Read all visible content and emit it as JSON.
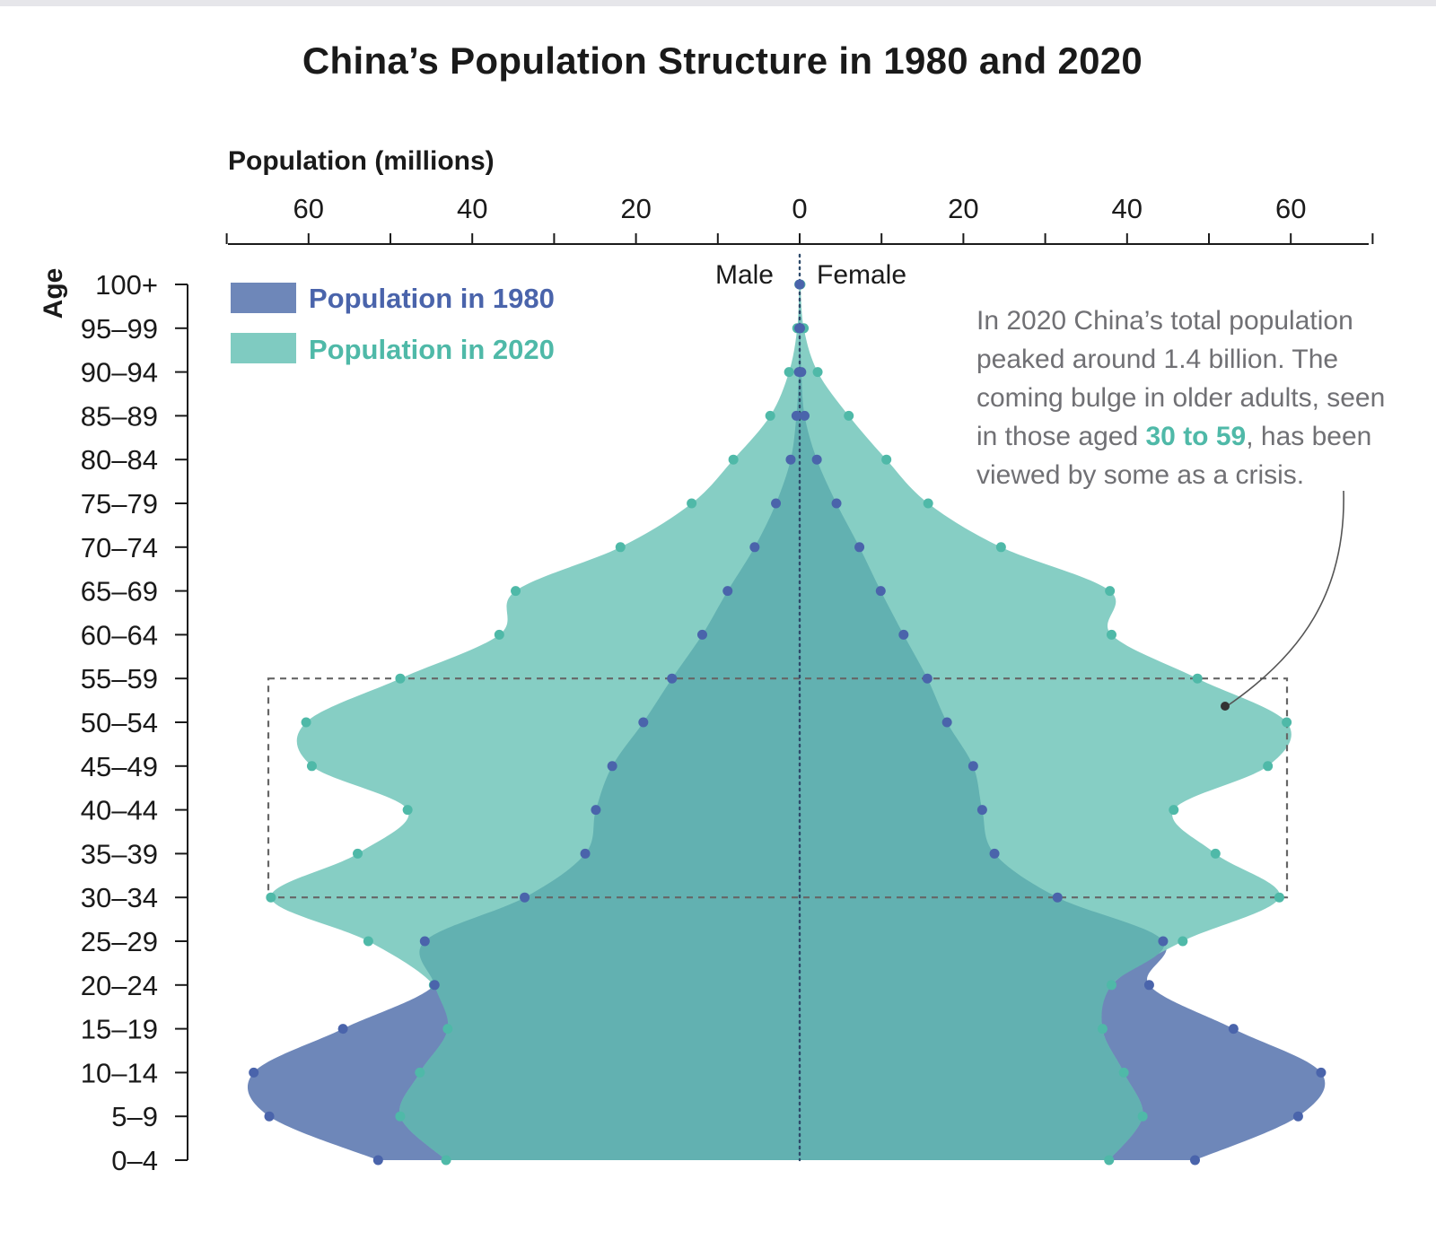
{
  "chart_data": {
    "type": "area",
    "title": "China’s Population Structure in 1980 and 2020",
    "xlabel": "Population (millions)",
    "ylabel": "Age",
    "side_labels": {
      "left": "Male",
      "right": "Female"
    },
    "x_ticks": [
      "60",
      "40",
      "20",
      "0",
      "20",
      "40",
      "60"
    ],
    "x_tick_values": [
      -60,
      -40,
      -20,
      0,
      20,
      40,
      60
    ],
    "xlim": [
      -70,
      70
    ],
    "categories": [
      "0–4",
      "5–9",
      "10–14",
      "15–19",
      "20–24",
      "25–29",
      "30–34",
      "35–39",
      "40–44",
      "45–49",
      "50–54",
      "55–59",
      "60–64",
      "65–69",
      "70–74",
      "75–79",
      "80–84",
      "85–89",
      "90–94",
      "95–99",
      "100+"
    ],
    "series": [
      {
        "name": "Population in 1980",
        "color": "#6e87b9",
        "point_color": "#4a64ab",
        "male": [
          51.5,
          64.8,
          66.7,
          55.8,
          44.6,
          45.8,
          33.6,
          26.2,
          24.9,
          22.9,
          19.1,
          15.6,
          11.9,
          8.8,
          5.5,
          2.9,
          1.1,
          0.4,
          0.1,
          0.05,
          0.0
        ],
        "female": [
          48.3,
          60.9,
          63.7,
          53.0,
          42.7,
          44.4,
          31.5,
          23.8,
          22.3,
          21.2,
          18.0,
          15.6,
          12.7,
          9.9,
          7.3,
          4.5,
          2.1,
          0.6,
          0.2,
          0.05,
          0.0
        ]
      },
      {
        "name": "Population in 2020",
        "color": "#7fcbc1",
        "point_color": "#4fb9a8",
        "male": [
          43.2,
          48.8,
          46.4,
          43.0,
          44.7,
          52.7,
          64.6,
          54.0,
          47.9,
          59.6,
          60.3,
          48.8,
          36.7,
          34.7,
          21.9,
          13.2,
          8.1,
          3.6,
          1.3,
          0.3,
          0.05
        ],
        "female": [
          37.8,
          41.9,
          39.6,
          37.0,
          38.1,
          46.8,
          58.6,
          50.8,
          45.7,
          57.2,
          59.5,
          48.6,
          38.1,
          37.9,
          24.6,
          15.7,
          10.6,
          6.0,
          2.2,
          0.5,
          0.1
        ]
      }
    ],
    "highlight_box": {
      "ages_from": "30–34",
      "ages_to": "55–59"
    },
    "grid": false,
    "legend_position": "top-left"
  },
  "annotation": {
    "before": "In 2020 China’s total population peaked around 1.4 billion. The coming bulge in older adults, seen in those aged ",
    "highlight": "30 to 59",
    "after": ", has been viewed by some as a crisis."
  }
}
